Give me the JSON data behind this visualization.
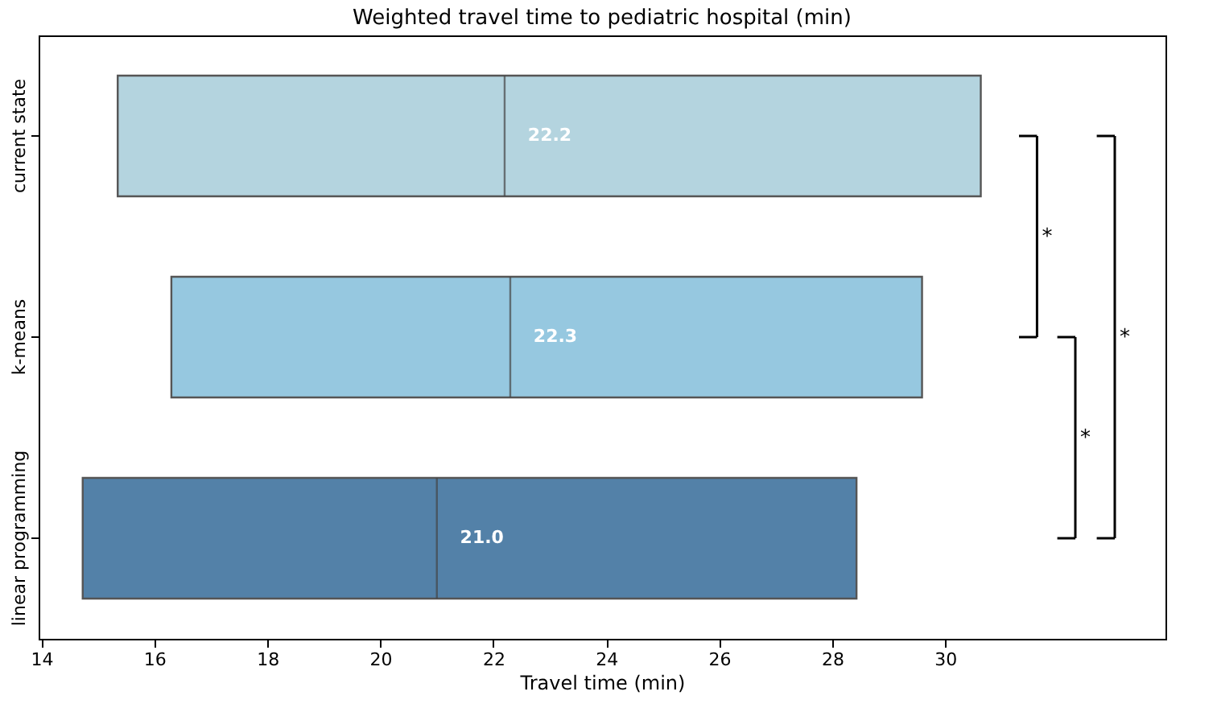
{
  "chart_data": {
    "type": "box",
    "orientation": "horizontal",
    "title": "Weighted travel time to pediatric hospital (min)",
    "xlabel": "Travel time (min)",
    "categories": [
      "current state",
      "k-means",
      "linear programming"
    ],
    "boxes": [
      {
        "low": 15.35,
        "q1": 15.35,
        "median": 22.2,
        "q3": 30.63,
        "high": 30.63
      },
      {
        "low": 16.3,
        "q1": 16.3,
        "median": 22.3,
        "q3": 29.59,
        "high": 29.59
      },
      {
        "low": 14.73,
        "q1": 14.73,
        "median": 21.0,
        "q3": 28.43,
        "high": 28.43
      }
    ],
    "colors": [
      "#b4d4df",
      "#96c8e0",
      "#5381a8"
    ],
    "value_labels": [
      "22.2",
      "22.3",
      "21.0"
    ],
    "xlim": [
      13.95,
      33.9
    ],
    "xticks": [
      14,
      16,
      18,
      20,
      22,
      24,
      26,
      28,
      30
    ],
    "annotations": [
      "*",
      "*",
      "*"
    ],
    "grid": false,
    "legend": false
  }
}
